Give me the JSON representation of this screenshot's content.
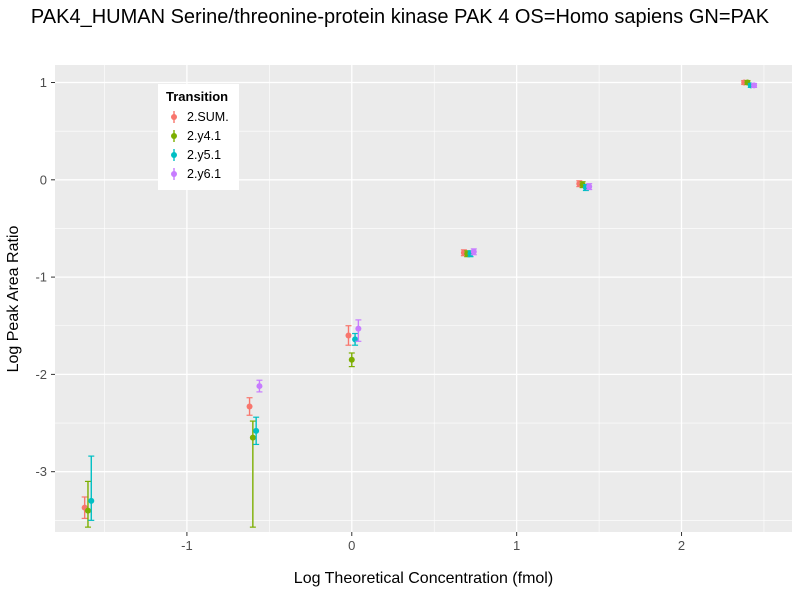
{
  "chart_data": {
    "type": "scatter",
    "title": "PAK4_HUMAN Serine/threonine-protein kinase PAK 4 OS=Homo sapiens GN=PAK",
    "xlabel": "Log Theoretical Concentration (fmol)",
    "ylabel": "Log Peak Area Ratio",
    "legend_title": "Transition",
    "legend_position": "inside-top-left",
    "grid": true,
    "panel_bg": "#EBEBEB",
    "grid_color": "#FFFFFF",
    "tick_label_color": "#4d4d4d",
    "xlim": [
      -1.8,
      2.67
    ],
    "ylim": [
      -3.62,
      1.18
    ],
    "x_ticks": [
      -1,
      0,
      1,
      2
    ],
    "y_ticks": [
      -3,
      -2,
      -1,
      0,
      1
    ],
    "x_minor_ticks": [
      -1.5,
      -0.5,
      0.5,
      1.5,
      2.5
    ],
    "y_minor_ticks": [
      -3.5,
      -2.5,
      -1.5,
      -0.5,
      0.5
    ],
    "series": [
      {
        "name": "2.SUM.",
        "color": "#F8766D",
        "points": [
          {
            "x": -1.62,
            "y": -3.37,
            "ymin": -3.48,
            "ymax": -3.26
          },
          {
            "x": -0.62,
            "y": -2.33,
            "ymin": -2.42,
            "ymax": -2.24
          },
          {
            "x": -0.02,
            "y": -1.6,
            "ymin": -1.7,
            "ymax": -1.5
          },
          {
            "x": 0.68,
            "y": -0.75,
            "ymin": -0.78,
            "ymax": -0.72
          },
          {
            "x": 1.38,
            "y": -0.04,
            "ymin": -0.07,
            "ymax": -0.01
          },
          {
            "x": 2.38,
            "y": 1.0,
            "ymin": 0.98,
            "ymax": 1.02
          }
        ]
      },
      {
        "name": "2.y4.1",
        "color": "#7CAE00",
        "points": [
          {
            "x": -1.6,
            "y": -3.4,
            "ymin": -3.57,
            "ymax": -3.1
          },
          {
            "x": -0.6,
            "y": -2.65,
            "ymin": -3.57,
            "ymax": -2.48
          },
          {
            "x": 0.0,
            "y": -1.85,
            "ymin": -1.92,
            "ymax": -1.78
          },
          {
            "x": 0.7,
            "y": -0.76,
            "ymin": -0.79,
            "ymax": -0.73
          },
          {
            "x": 1.4,
            "y": -0.05,
            "ymin": -0.08,
            "ymax": -0.02
          },
          {
            "x": 2.4,
            "y": 1.0,
            "ymin": 0.98,
            "ymax": 1.02
          }
        ]
      },
      {
        "name": "2.y5.1",
        "color": "#00BFC4",
        "points": [
          {
            "x": -1.58,
            "y": -3.3,
            "ymin": -3.5,
            "ymax": -2.84
          },
          {
            "x": -0.58,
            "y": -2.58,
            "ymin": -2.72,
            "ymax": -2.44
          },
          {
            "x": 0.02,
            "y": -1.64,
            "ymin": -1.7,
            "ymax": -1.58
          },
          {
            "x": 0.72,
            "y": -0.76,
            "ymin": -0.79,
            "ymax": -0.73
          },
          {
            "x": 1.42,
            "y": -0.08,
            "ymin": -0.11,
            "ymax": -0.05
          },
          {
            "x": 2.42,
            "y": 0.97,
            "ymin": 0.95,
            "ymax": 0.99
          }
        ]
      },
      {
        "name": "2.y6.1",
        "color": "#C77CFF",
        "points": [
          {
            "x": -0.56,
            "y": -2.12,
            "ymin": -2.18,
            "ymax": -2.06
          },
          {
            "x": 0.04,
            "y": -1.53,
            "ymin": -1.66,
            "ymax": -1.44
          },
          {
            "x": 0.74,
            "y": -0.74,
            "ymin": -0.77,
            "ymax": -0.71
          },
          {
            "x": 1.44,
            "y": -0.07,
            "ymin": -0.1,
            "ymax": -0.04
          },
          {
            "x": 2.44,
            "y": 0.97,
            "ymin": 0.95,
            "ymax": 0.99
          }
        ]
      }
    ]
  }
}
